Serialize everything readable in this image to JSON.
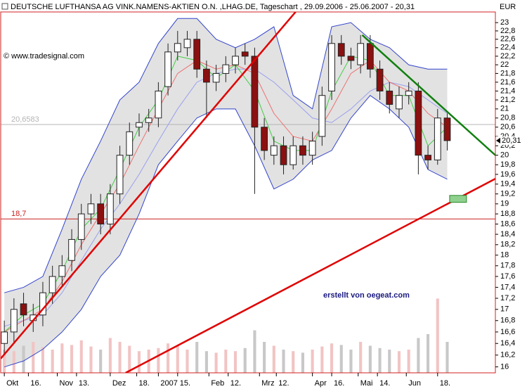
{
  "chart_data": {
    "type": "candlestick",
    "title": "DEUTSCHE LUFTHANSA AG VINK.NAMENS-AKTIEN O.N. ,LHAG.DE, Tageschart , 29.09.2006 - 25.06.2007 - 20,31",
    "currency": "EUR",
    "copyright": "© www.tradesignal.com",
    "annotation": "erstellt von oegeat.com",
    "yscale": "log",
    "xlim": [
      -1.5,
      204
    ],
    "ylim": [
      15.9,
      23.26
    ],
    "yticks": [
      16,
      {
        "value": 16.2,
        "label": "16,2"
      },
      {
        "value": 16.4,
        "label": "16,4"
      },
      {
        "value": 16.6,
        "label": "16,6"
      },
      {
        "value": 16.8,
        "label": "16,8"
      },
      17,
      {
        "value": 17.2,
        "label": "17,2"
      },
      {
        "value": 17.4,
        "label": "17,4"
      },
      {
        "value": 17.6,
        "label": "17,6"
      },
      {
        "value": 17.8,
        "label": "17,8"
      },
      18,
      {
        "value": 18.2,
        "label": "18,2"
      },
      {
        "value": 18.4,
        "label": "18,4"
      },
      {
        "value": 18.6,
        "label": "18,6"
      },
      {
        "value": 18.8,
        "label": "18,8"
      },
      19,
      {
        "value": 19.2,
        "label": "19,2"
      },
      {
        "value": 19.4,
        "label": "19,4"
      },
      {
        "value": 19.6,
        "label": "19,6"
      },
      {
        "value": 19.8,
        "label": "19,8"
      },
      20,
      {
        "value": 20.2,
        "label": "20,2"
      },
      {
        "value": 20.4,
        "label": "20,4"
      },
      {
        "value": 20.6,
        "label": "20,6"
      },
      {
        "value": 20.8,
        "label": "20,8"
      },
      21,
      {
        "value": 21.2,
        "label": "21,2"
      },
      {
        "value": 21.4,
        "label": "21,4"
      },
      {
        "value": 21.6,
        "label": "21,6"
      },
      {
        "value": 21.8,
        "label": "21,8"
      },
      22,
      {
        "value": 22.2,
        "label": "22,2"
      },
      {
        "value": 22.4,
        "label": "22,4"
      },
      {
        "value": 22.6,
        "label": "22,6"
      },
      {
        "value": 22.8,
        "label": "22,8"
      },
      23
    ],
    "xticks": [
      {
        "value": 0,
        "label": "Okt"
      },
      {
        "value": 10,
        "label": "16."
      },
      {
        "value": 22,
        "label": "Nov"
      },
      {
        "value": 30,
        "label": "13."
      },
      {
        "value": 44,
        "label": "Dez"
      },
      {
        "value": 55,
        "label": "18."
      },
      {
        "value": 64,
        "label": "2007"
      },
      {
        "value": 72,
        "label": "15."
      },
      {
        "value": 85,
        "label": "Feb"
      },
      {
        "value": 93,
        "label": "12."
      },
      {
        "value": 106,
        "label": "Mrz"
      },
      {
        "value": 113,
        "label": "12."
      },
      {
        "value": 128,
        "label": "Apr"
      },
      {
        "value": 136,
        "label": "16."
      },
      {
        "value": 147,
        "label": "Mai"
      },
      {
        "value": 155,
        "label": "14."
      },
      {
        "value": 167,
        "label": "Jun"
      },
      {
        "value": 180,
        "label": "18."
      }
    ],
    "x": [
      0,
      4,
      8,
      12,
      16,
      20,
      24,
      28,
      32,
      36,
      40,
      44,
      48,
      52,
      56,
      60,
      64,
      68,
      72,
      76,
      80,
      84,
      88,
      92,
      96,
      100,
      104,
      108,
      112,
      116,
      120,
      124,
      128,
      132,
      136,
      140,
      144,
      148,
      152,
      156,
      160,
      164,
      168,
      172,
      176,
      180,
      184
    ],
    "open": [
      16.4,
      16.6,
      17.1,
      16.8,
      16.9,
      17.3,
      17.6,
      17.9,
      18.3,
      18.8,
      19.0,
      18.6,
      19.2,
      20.0,
      20.6,
      20.7,
      20.8,
      21.5,
      22.3,
      22.4,
      22.6,
      21.9,
      21.6,
      21.8,
      22.0,
      22.3,
      22.2,
      20.6,
      20.0,
      20.2,
      19.8,
      20.2,
      20.0,
      20.4,
      21.4,
      22.5,
      22.2,
      22.0,
      22.5,
      21.9,
      21.4,
      21.0,
      21.3,
      21.4,
      20.0,
      19.9,
      20.8
    ],
    "high": [
      16.8,
      17.2,
      17.3,
      17.1,
      17.5,
      17.8,
      18.0,
      18.5,
      19.0,
      19.2,
      19.2,
      19.4,
      20.2,
      20.7,
      20.9,
      21.0,
      21.6,
      22.5,
      22.8,
      22.8,
      22.8,
      22.1,
      22.0,
      22.2,
      22.4,
      22.5,
      22.4,
      20.8,
      20.4,
      20.4,
      20.4,
      20.4,
      20.5,
      21.5,
      22.7,
      22.7,
      22.4,
      22.7,
      22.7,
      22.1,
      21.6,
      21.5,
      21.6,
      21.6,
      20.2,
      21.0,
      20.9
    ],
    "low": [
      16.2,
      16.4,
      16.7,
      16.6,
      16.7,
      17.1,
      17.4,
      17.7,
      18.1,
      18.6,
      18.4,
      18.4,
      19.0,
      19.8,
      20.4,
      20.5,
      20.6,
      21.3,
      22.1,
      22.2,
      21.7,
      20.8,
      21.4,
      21.6,
      21.8,
      22.0,
      19.2,
      19.9,
      19.8,
      19.6,
      19.7,
      19.8,
      19.8,
      20.2,
      21.2,
      22.0,
      21.9,
      21.8,
      21.7,
      21.2,
      20.9,
      20.8,
      21.1,
      19.6,
      19.7,
      19.8,
      20.1
    ],
    "close": [
      16.6,
      17.0,
      16.9,
      16.9,
      17.3,
      17.6,
      17.8,
      18.3,
      18.8,
      19.0,
      18.6,
      19.2,
      20.0,
      20.5,
      20.7,
      20.8,
      21.4,
      22.3,
      22.5,
      22.6,
      21.9,
      21.6,
      21.8,
      22.0,
      22.2,
      22.2,
      20.6,
      20.1,
      20.2,
      19.8,
      20.2,
      20.0,
      20.3,
      21.3,
      22.5,
      22.2,
      22.1,
      22.5,
      21.9,
      21.4,
      21.1,
      21.3,
      21.4,
      20.0,
      19.9,
      20.8,
      20.31
    ],
    "up_color": "#ffffff",
    "down_color": "#8b1010",
    "volume": [
      30,
      28,
      35,
      40,
      33,
      30,
      38,
      36,
      42,
      34,
      30,
      45,
      40,
      35,
      28,
      30,
      32,
      38,
      35,
      30,
      40,
      28,
      26,
      30,
      28,
      32,
      55,
      40,
      35,
      30,
      28,
      26,
      30,
      34,
      38,
      36,
      30,
      40,
      35,
      32,
      30,
      28,
      30,
      45,
      50,
      96,
      40
    ],
    "volume_up_color": "#f2c4c4",
    "volume_down_color": "#c8c8c8",
    "band_x": [
      0,
      8,
      16,
      24,
      32,
      40,
      48,
      56,
      64,
      72,
      80,
      88,
      96,
      104,
      112,
      120,
      128,
      136,
      144,
      152,
      160,
      168,
      176,
      184
    ],
    "band_fill": "#e2e2e2",
    "lines": [
      {
        "color": "#3344cc",
        "values": [
          17.3,
          17.4,
          17.6,
          18.5,
          19.5,
          20.3,
          21.2,
          21.6,
          22.5,
          23.1,
          23.1,
          22.6,
          22.4,
          22.6,
          22.9,
          21.3,
          21.0,
          22.9,
          23.0,
          22.6,
          22.4,
          22.0,
          21.9,
          21.9
        ]
      },
      {
        "color": "#3344cc",
        "values": [
          16.0,
          16.1,
          16.3,
          16.6,
          17.0,
          17.6,
          18.0,
          18.8,
          19.8,
          20.3,
          20.8,
          21.0,
          21.0,
          20.2,
          19.3,
          19.5,
          19.9,
          20.1,
          20.8,
          21.3,
          21.0,
          20.6,
          19.7,
          19.5
        ]
      },
      {
        "color": "#9aa0ee",
        "values": [
          16.7,
          16.8,
          16.9,
          17.3,
          17.9,
          18.5,
          19.0,
          19.6,
          20.3,
          21.0,
          21.6,
          21.8,
          21.9,
          21.9,
          21.6,
          21.2,
          20.8,
          20.7,
          21.0,
          21.4,
          21.6,
          21.5,
          21.2,
          20.9
        ]
      },
      {
        "color": "#ee7070",
        "values": [
          16.6,
          16.8,
          17.0,
          17.5,
          18.2,
          18.8,
          19.4,
          20.2,
          21.0,
          21.8,
          22.1,
          21.9,
          22.0,
          21.8,
          20.9,
          20.4,
          20.3,
          21.0,
          21.8,
          22.1,
          21.6,
          21.4,
          20.9,
          20.6
        ]
      },
      {
        "color": "#44cc44",
        "values": [
          16.6,
          16.9,
          17.1,
          17.7,
          18.5,
          18.9,
          19.7,
          20.6,
          21.2,
          22.2,
          22.1,
          21.7,
          22.0,
          21.4,
          20.3,
          20.1,
          20.1,
          21.4,
          22.2,
          22.1,
          21.3,
          21.3,
          20.2,
          20.6
        ]
      }
    ],
    "trendlines": [
      {
        "color": "#e00000",
        "x": [
          -1.5,
          121
        ],
        "y": [
          16.14,
          23.26
        ]
      },
      {
        "color": "#e00000",
        "x": [
          50.4,
          204
        ],
        "y": [
          15.9,
          19.51
        ]
      },
      {
        "color": "#108010",
        "x": [
          148.7,
          204
        ],
        "y": [
          22.7,
          20.0
        ]
      }
    ],
    "marker_box": {
      "color": "#8fd08f",
      "x": [
        185,
        192
      ],
      "y": [
        19.03,
        19.17
      ]
    },
    "levels": [
      {
        "value": 20.6583,
        "label": "20,6583",
        "color": "#b4b4b4"
      },
      {
        "value": 18.7,
        "label": "18,7",
        "color": "#cc2020"
      }
    ],
    "last_price": {
      "value": 20.31,
      "label": "20,31"
    }
  }
}
